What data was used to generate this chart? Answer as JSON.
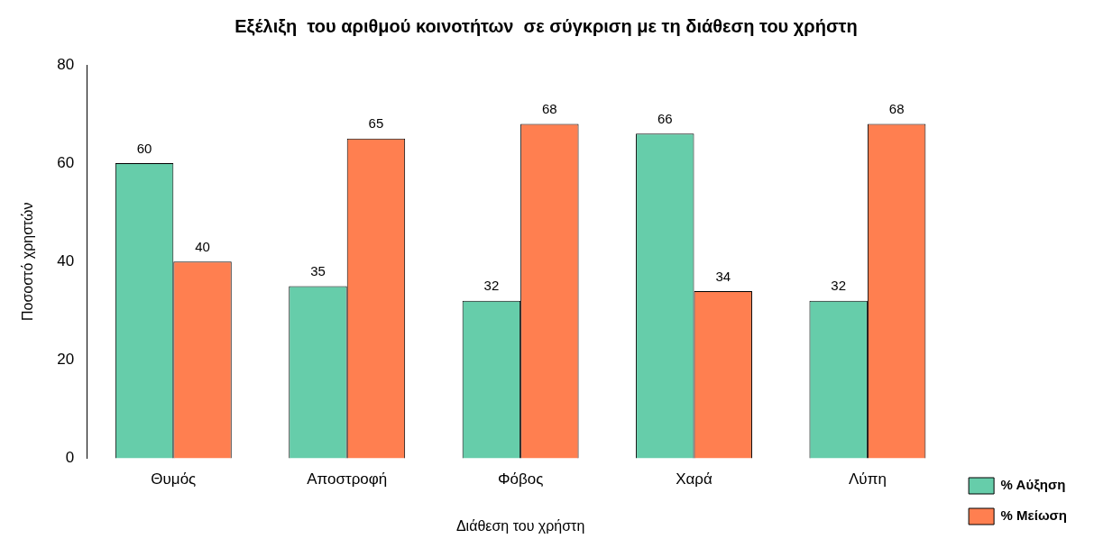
{
  "chart_data": {
    "type": "bar",
    "title": "Εξέλιξη  του αριθμού κοινοτήτων  σε σύγκριση με τη διάθεση του χρήστη",
    "xlabel": "Διάθεση του χρήστη",
    "ylabel": "Ποσοστό χρηστών",
    "categories": [
      "Θυμός",
      "Αποστροφή",
      "Φόβος",
      "Χαρά",
      "Λύπη"
    ],
    "series": [
      {
        "name": "% Αύξηση",
        "color": "#66cdaa",
        "values": [
          60,
          35,
          32,
          66,
          32
        ]
      },
      {
        "name": "% Μείωση",
        "color": "#ff7f50",
        "values": [
          40,
          65,
          68,
          34,
          68
        ]
      }
    ],
    "ylim": [
      0,
      80
    ],
    "yticks": [
      0,
      20,
      40,
      60,
      80
    ],
    "grid": false,
    "legend": "bottom right",
    "data_labels": true
  }
}
